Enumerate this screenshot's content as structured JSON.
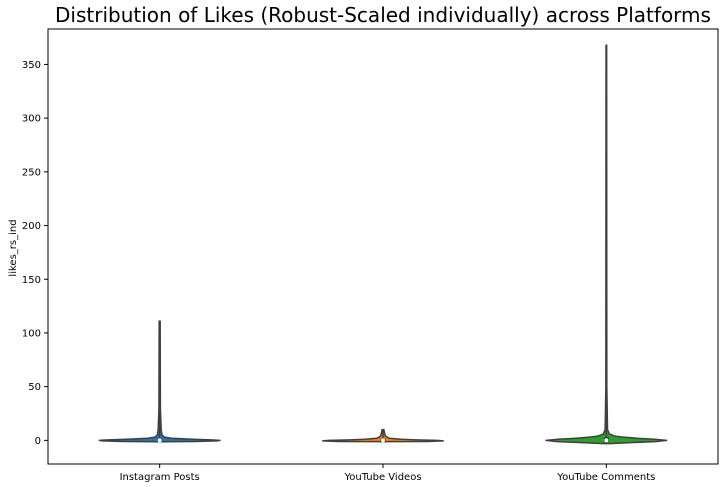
{
  "chart_data": {
    "type": "violin",
    "title": "Distribution of Likes (Robust-Scaled individually) across Platforms",
    "xlabel": "",
    "ylabel": "likes_rs_ind",
    "categories": [
      "Instagram Posts",
      "YouTube Videos",
      "YouTube Comments"
    ],
    "ylim": [
      -22,
      383
    ],
    "yticks": [
      0,
      50,
      100,
      150,
      200,
      250,
      300,
      350
    ],
    "grid": false,
    "violins": [
      {
        "category": "Instagram Posts",
        "color": "#1f77b4",
        "min": -1.3,
        "q1": -0.5,
        "median": 0,
        "q3": 0.5,
        "max": 111,
        "profile": [
          [
            -1.3,
            0.05
          ],
          [
            -1,
            0.6
          ],
          [
            -0.5,
            0.95
          ],
          [
            0,
            1.0
          ],
          [
            0.5,
            0.85
          ],
          [
            1,
            0.55
          ],
          [
            2,
            0.2
          ],
          [
            3,
            0.08
          ],
          [
            5,
            0.04
          ],
          [
            10,
            0.025
          ],
          [
            30,
            0.012
          ],
          [
            111,
            0.008
          ]
        ]
      },
      {
        "category": "YouTube Videos",
        "color": "#ff7f0e",
        "min": -1.2,
        "q1": -0.6,
        "median": 0,
        "q3": 0.4,
        "max": 10,
        "profile": [
          [
            -1.2,
            0.05
          ],
          [
            -1,
            0.75
          ],
          [
            -0.5,
            1.0
          ],
          [
            0,
            0.9
          ],
          [
            0.5,
            0.55
          ],
          [
            1,
            0.3
          ],
          [
            2,
            0.1
          ],
          [
            4,
            0.04
          ],
          [
            7,
            0.025
          ],
          [
            10,
            0.015
          ]
        ]
      },
      {
        "category": "YouTube Comments",
        "color": "#2ca02c",
        "min": -3,
        "q1": -0.6,
        "median": 0,
        "q3": 1.5,
        "max": 368,
        "profile": [
          [
            -3,
            0.05
          ],
          [
            -2,
            0.45
          ],
          [
            -1,
            0.85
          ],
          [
            0,
            1.0
          ],
          [
            1,
            0.8
          ],
          [
            2,
            0.5
          ],
          [
            3,
            0.28
          ],
          [
            4,
            0.14
          ],
          [
            6,
            0.05
          ],
          [
            10,
            0.02
          ],
          [
            50,
            0.008
          ],
          [
            368,
            0.005
          ]
        ]
      }
    ]
  }
}
